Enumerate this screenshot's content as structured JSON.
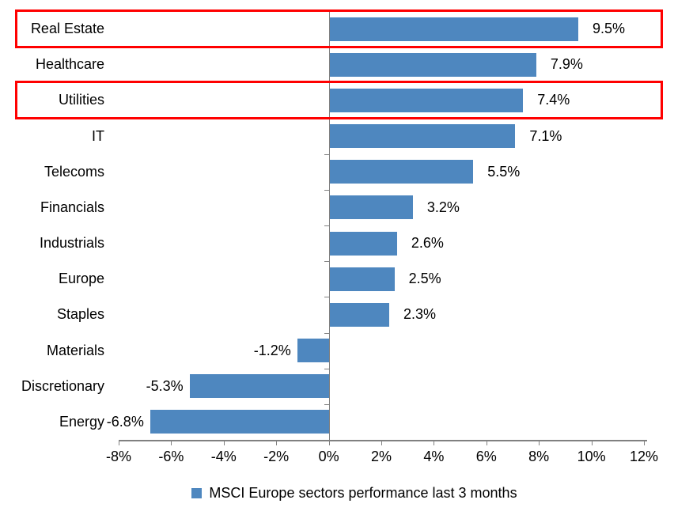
{
  "chart_data": {
    "type": "bar",
    "orientation": "horizontal",
    "categories": [
      "Real Estate",
      "Healthcare",
      "Utilities",
      "IT",
      "Telecoms",
      "Financials",
      "Industrials",
      "Europe",
      "Staples",
      "Materials",
      "Discretionary",
      "Energy"
    ],
    "values": [
      9.5,
      7.9,
      7.4,
      7.1,
      5.5,
      3.2,
      2.6,
      2.5,
      2.3,
      -1.2,
      -5.3,
      -6.8
    ],
    "value_labels": [
      "9.5%",
      "7.9%",
      "7.4%",
      "7.1%",
      "5.5%",
      "3.2%",
      "2.6%",
      "2.5%",
      "2.3%",
      "-1.2%",
      "-5.3%",
      "-6.8%"
    ],
    "xlim": [
      -8,
      12
    ],
    "x_tick_step": 2,
    "x_tick_labels": [
      "-8%",
      "-6%",
      "-4%",
      "-2%",
      "0%",
      "2%",
      "4%",
      "6%",
      "8%",
      "10%",
      "12%"
    ],
    "grid": false,
    "series_name": "MSCI Europe sectors performance last 3 months",
    "legend": {
      "position": "bottom"
    },
    "bar_color": "#4E87BF",
    "axis_color": "#808080",
    "highlight_color": "#FF0000",
    "highlighted_categories": [
      "Real Estate",
      "Utilities"
    ]
  }
}
